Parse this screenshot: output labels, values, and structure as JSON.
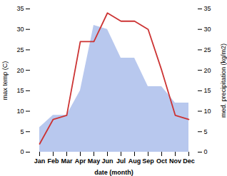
{
  "chart_data": {
    "type": "line",
    "xlabel": "date (month)",
    "ylabel": "max temp (C)",
    "y2label": "med. precipitation (kg/m2)",
    "categories": [
      "Jan",
      "Feb",
      "Mar",
      "Apr",
      "May",
      "Jun",
      "Jul",
      "Aug",
      "Sep",
      "Oct",
      "Nov",
      "Dec"
    ],
    "series": [
      {
        "type": "area",
        "color": "#b8c8ee",
        "values": [
          6,
          9,
          9,
          15,
          31,
          30,
          23,
          23,
          16,
          16,
          12,
          12
        ]
      },
      {
        "type": "line",
        "color": "#cc3333",
        "values": [
          2,
          8,
          9,
          27,
          27,
          34,
          32,
          32,
          30,
          20,
          9,
          8
        ]
      }
    ],
    "ylim": [
      0,
      35
    ],
    "yticks": [
      0,
      5,
      10,
      15,
      20,
      25,
      30,
      35
    ],
    "y2lim": [
      0,
      35
    ],
    "y2ticks": [
      0,
      5,
      10,
      15,
      20,
      25,
      30,
      35
    ],
    "grid": false
  }
}
